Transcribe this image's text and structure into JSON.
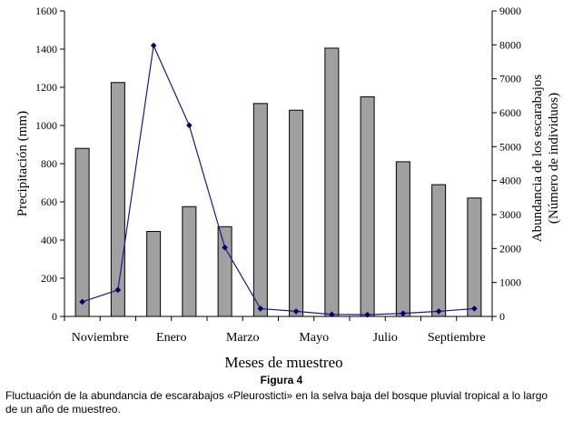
{
  "figure": {
    "label": "Figura 4",
    "caption": "Fluctuación de la abundancia de escarabajos «Pleurosticti» en la selva baja del bosque pluvial tropical a lo largo de un año de muestreo."
  },
  "chart_data": {
    "type": "bar",
    "xlabel": "Meses de muestreo",
    "x_tick_labels": [
      "Noviembre",
      "Enero",
      "Marzo",
      "Mayo",
      "Julio",
      "Septiembre"
    ],
    "left_axis": {
      "label": "Precipitación (mm)",
      "ylim": [
        0,
        1600
      ],
      "ticks": [
        "0",
        "200",
        "400",
        "600",
        "800",
        "1000",
        "1200",
        "1400",
        "1600"
      ]
    },
    "right_axis": {
      "label_line1": "Abundancia de los escarabajos",
      "label_line2": "(Número de individuos)",
      "ylim": [
        0,
        9000
      ],
      "ticks": [
        "0",
        "1000",
        "2000",
        "3000",
        "4000",
        "5000",
        "6000",
        "7000",
        "8000",
        "9000"
      ]
    },
    "series": [
      {
        "type": "bar",
        "axis": "left",
        "values": [
          880,
          1225,
          445,
          575,
          470,
          1115,
          1080,
          1405,
          1150,
          810,
          690,
          620
        ]
      },
      {
        "type": "line",
        "axis": "right",
        "values": [
          430,
          780,
          7980,
          5630,
          2030,
          230,
          150,
          60,
          50,
          90,
          150,
          230
        ]
      }
    ],
    "colors": {
      "bar_fill": "#a0a0a0",
      "bar_stroke": "#000000",
      "line": "#1a1a8c",
      "marker": "#000066"
    },
    "grid": false,
    "legend": "none"
  }
}
